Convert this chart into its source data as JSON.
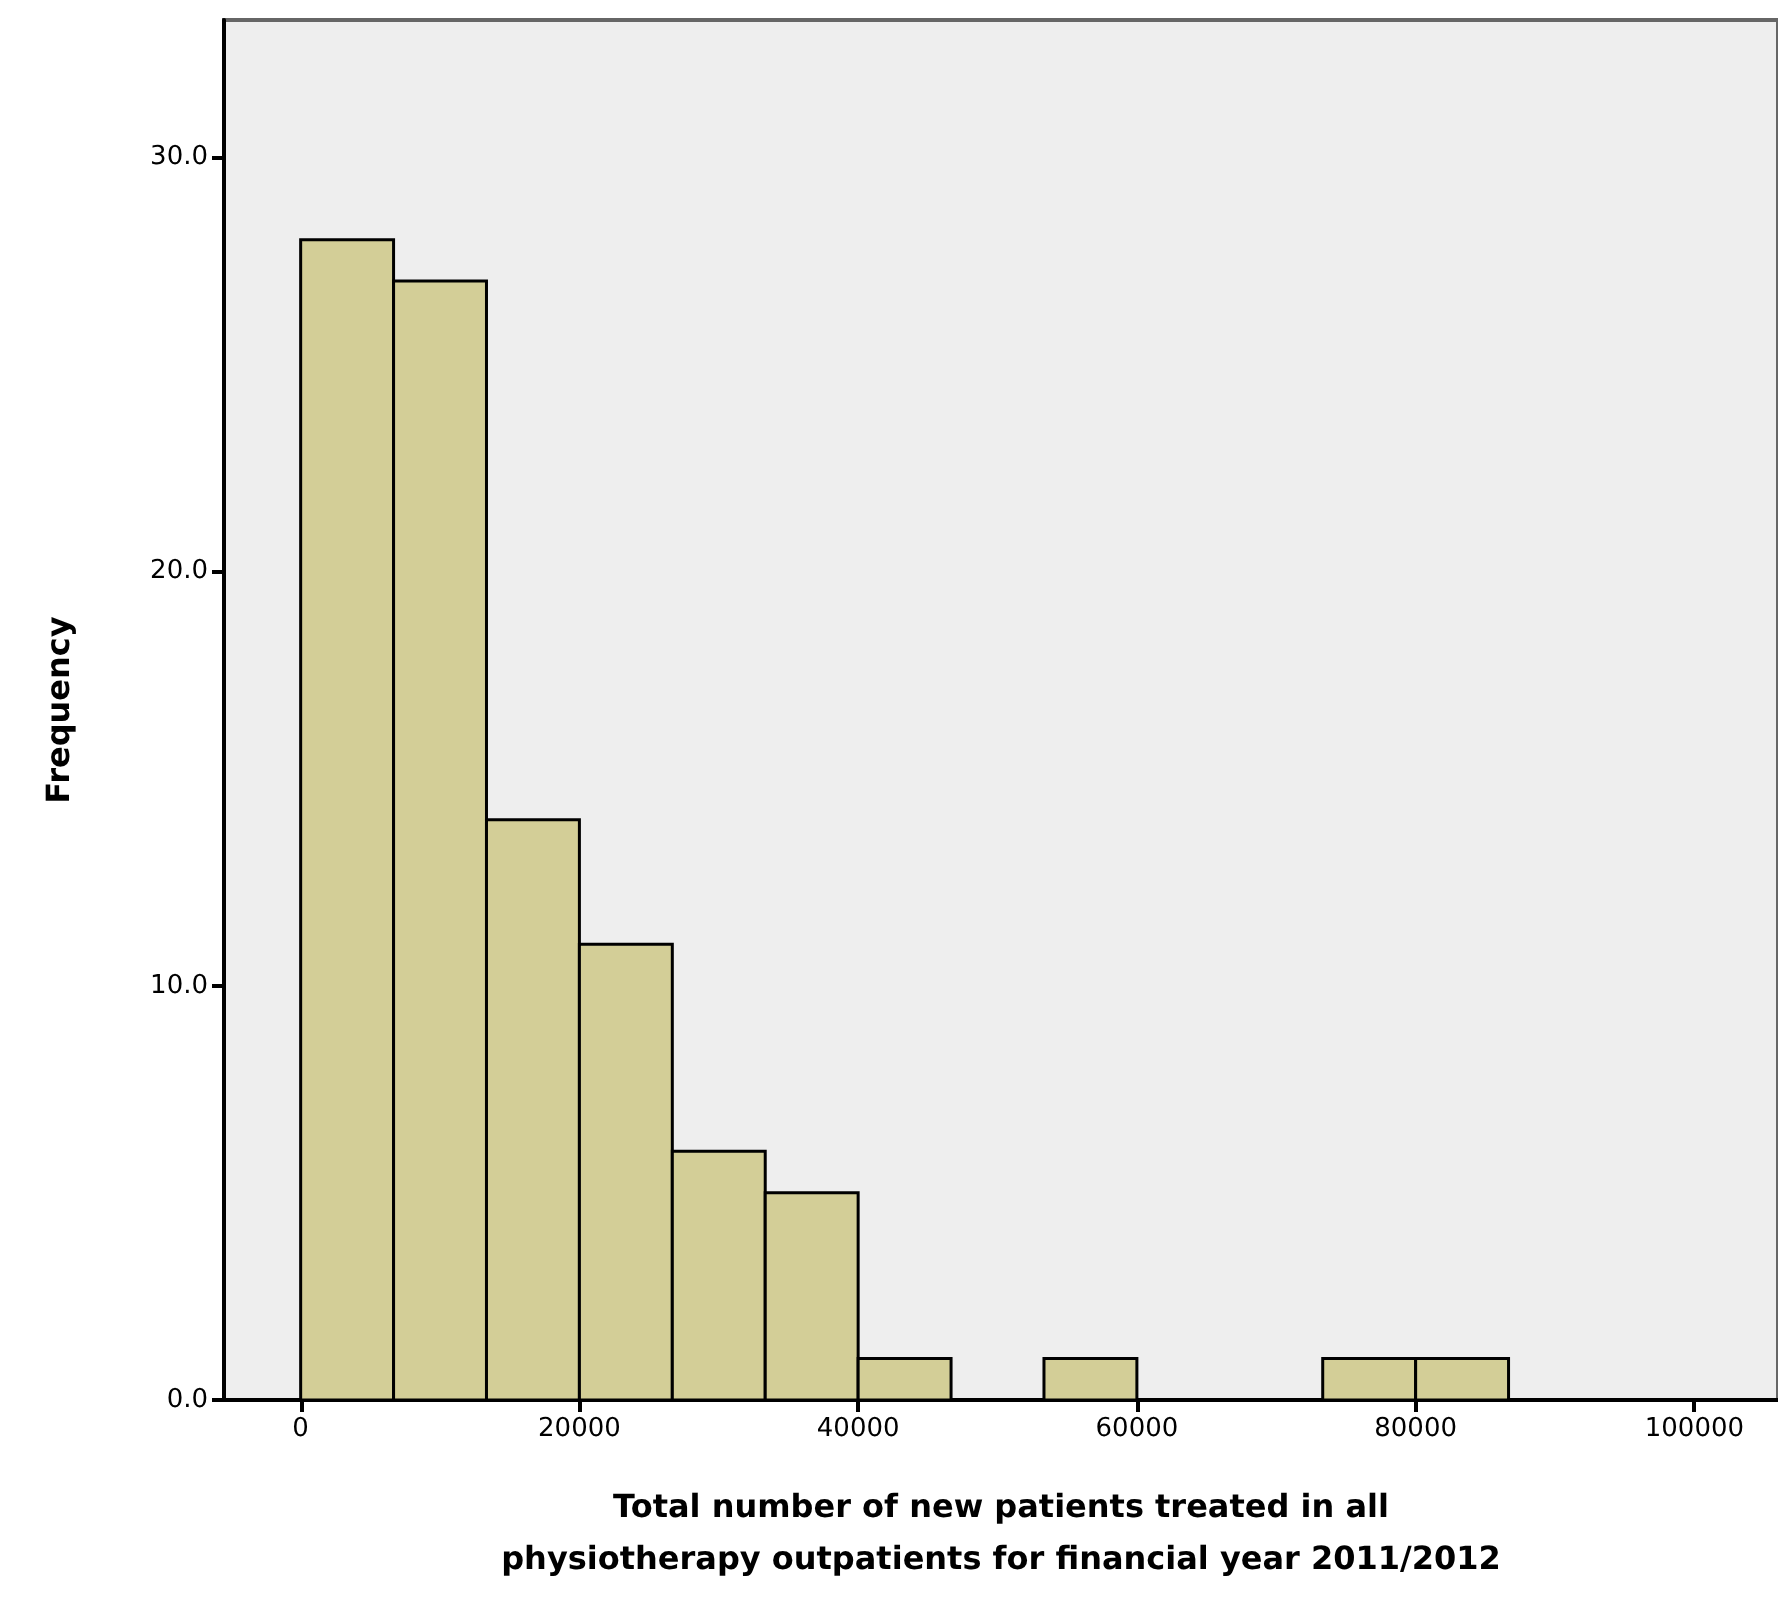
{
  "chart_data": {
    "type": "histogram",
    "xlabel": "Total number of new patients treated in all\nphysiotherapy outpatients for financial year 2011/2012",
    "ylabel": "Frequency",
    "bins": [
      0,
      6666.7,
      13333.3,
      20000,
      26666.7,
      33333.3,
      40000,
      46666.7,
      53333.3,
      60000,
      66666.7,
      73333.3,
      80000,
      86666.7
    ],
    "values": [
      28,
      27,
      14,
      11,
      6,
      5,
      1,
      0,
      1,
      0,
      0,
      1,
      1
    ],
    "color": "#d3ce97",
    "xlim": [
      -5500,
      106000
    ],
    "xticks": [
      0,
      20000,
      40000,
      60000,
      80000,
      100000
    ],
    "ylim": [
      0,
      33.3
    ],
    "yticks": [
      {
        "value": 0,
        "label": "0.0"
      },
      {
        "value": 10,
        "label": "10.0"
      },
      {
        "value": 20,
        "label": "20.0"
      },
      {
        "value": 30,
        "label": "30.0"
      }
    ],
    "grid": false
  }
}
